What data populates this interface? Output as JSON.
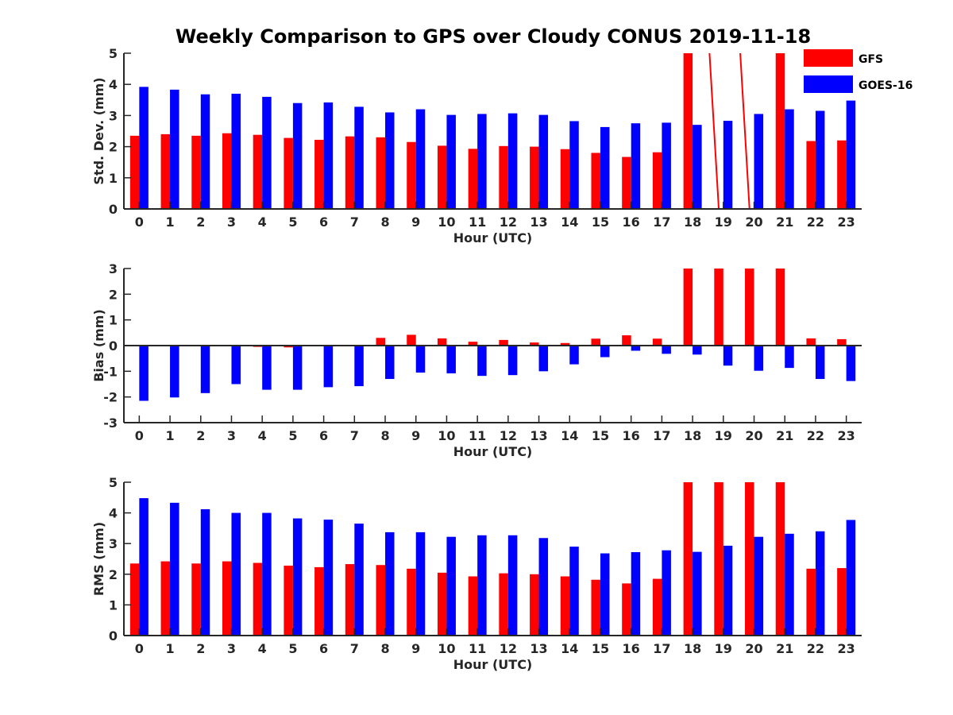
{
  "title": "Weekly Comparison to GPS over Cloudy CONUS 2019-11-18",
  "legend": {
    "placement": "top-right",
    "entries": [
      {
        "name": "GFS",
        "color": "#ff0000"
      },
      {
        "name": "GOES-16",
        "color": "#0000ff"
      }
    ]
  },
  "chart_data": [
    {
      "type": "bar",
      "xlabel": "Hour (UTC)",
      "ylabel": "Std. Dev. (mm)",
      "ylim": [
        0,
        5
      ],
      "yticks": [
        0,
        1,
        2,
        3,
        4,
        5
      ],
      "categories": [
        "0",
        "1",
        "2",
        "3",
        "4",
        "5",
        "6",
        "7",
        "8",
        "9",
        "10",
        "11",
        "12",
        "13",
        "14",
        "15",
        "16",
        "17",
        "18",
        "19",
        "20",
        "21",
        "22",
        "23"
      ],
      "series": [
        {
          "name": "GFS",
          "color": "#ff0000",
          "values": [
            2.35,
            2.4,
            2.35,
            2.43,
            2.38,
            2.28,
            2.22,
            2.33,
            2.3,
            2.15,
            2.03,
            1.93,
            2.02,
            2.0,
            1.92,
            1.8,
            1.67,
            1.82,
            5,
            null,
            null,
            5,
            2.18,
            2.2
          ]
        },
        {
          "name": "GOES-16",
          "color": "#0000ff",
          "values": [
            3.92,
            3.83,
            3.68,
            3.7,
            3.6,
            3.4,
            3.42,
            3.28,
            3.1,
            3.2,
            3.02,
            3.05,
            3.07,
            3.02,
            2.82,
            2.63,
            2.75,
            2.77,
            2.7,
            2.83,
            3.05,
            3.2,
            3.15,
            3.48
          ]
        }
      ]
    },
    {
      "type": "bar",
      "xlabel": "Hour (UTC)",
      "ylabel": "Bias (mm)",
      "ylim": [
        -3,
        3
      ],
      "yticks": [
        -3,
        -2,
        -1,
        0,
        1,
        2,
        3
      ],
      "categories": [
        "0",
        "1",
        "2",
        "3",
        "4",
        "5",
        "6",
        "7",
        "8",
        "9",
        "10",
        "11",
        "12",
        "13",
        "14",
        "15",
        "16",
        "17",
        "18",
        "19",
        "20",
        "21",
        "22",
        "23"
      ],
      "series": [
        {
          "name": "GFS",
          "color": "#ff0000",
          "values": [
            0.0,
            0.0,
            0.0,
            0.0,
            -0.05,
            -0.07,
            0.0,
            0.03,
            0.3,
            0.42,
            0.28,
            0.15,
            0.22,
            0.12,
            0.1,
            0.27,
            0.4,
            0.27,
            3,
            3,
            3,
            3,
            0.28,
            0.25
          ]
        },
        {
          "name": "GOES-16",
          "color": "#0000ff",
          "values": [
            -2.15,
            -2.02,
            -1.85,
            -1.5,
            -1.72,
            -1.72,
            -1.62,
            -1.58,
            -1.3,
            -1.05,
            -1.08,
            -1.18,
            -1.15,
            -1.0,
            -0.73,
            -0.45,
            -0.2,
            -0.32,
            -0.35,
            -0.78,
            -0.98,
            -0.87,
            -1.3,
            -1.38
          ]
        }
      ]
    },
    {
      "type": "bar",
      "xlabel": "Hour (UTC)",
      "ylabel": "RMS (mm)",
      "ylim": [
        0,
        5
      ],
      "yticks": [
        0,
        1,
        2,
        3,
        4,
        5
      ],
      "categories": [
        "0",
        "1",
        "2",
        "3",
        "4",
        "5",
        "6",
        "7",
        "8",
        "9",
        "10",
        "11",
        "12",
        "13",
        "14",
        "15",
        "16",
        "17",
        "18",
        "19",
        "20",
        "21",
        "22",
        "23"
      ],
      "series": [
        {
          "name": "GFS",
          "color": "#ff0000",
          "values": [
            2.35,
            2.42,
            2.35,
            2.42,
            2.37,
            2.28,
            2.23,
            2.33,
            2.3,
            2.18,
            2.05,
            1.93,
            2.03,
            2.0,
            1.93,
            1.82,
            1.7,
            1.85,
            5,
            5,
            5,
            5,
            2.18,
            2.2
          ]
        },
        {
          "name": "GOES-16",
          "color": "#0000ff",
          "values": [
            4.48,
            4.33,
            4.12,
            4.0,
            4.0,
            3.82,
            3.78,
            3.65,
            3.37,
            3.37,
            3.22,
            3.27,
            3.27,
            3.18,
            2.9,
            2.68,
            2.72,
            2.78,
            2.73,
            2.93,
            3.22,
            3.32,
            3.4,
            3.77
          ]
        }
      ]
    }
  ]
}
